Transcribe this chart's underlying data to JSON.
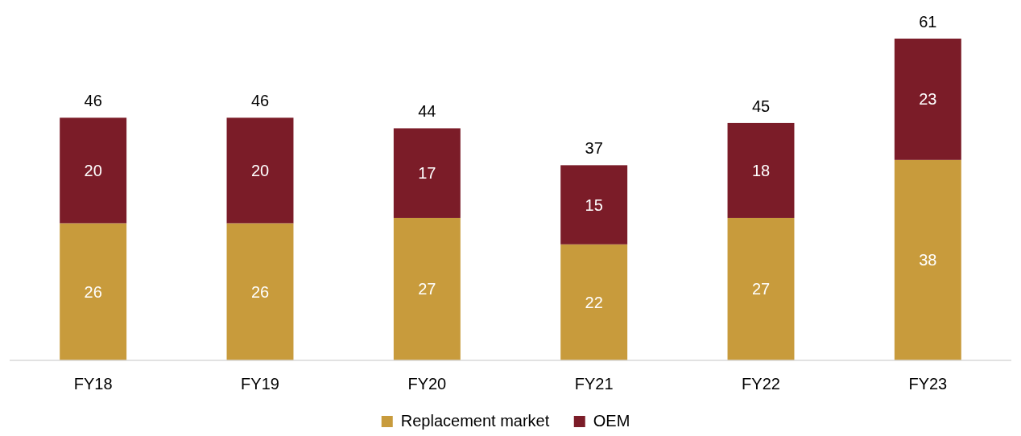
{
  "chart_data": {
    "type": "bar",
    "stacked": true,
    "categories": [
      "FY18",
      "FY19",
      "FY20",
      "FY21",
      "FY22",
      "FY23"
    ],
    "series": [
      {
        "name": "Replacement market",
        "color": "#c89b3c",
        "values": [
          26,
          26,
          27,
          22,
          27,
          38
        ]
      },
      {
        "name": "OEM",
        "color": "#7b1c28",
        "values": [
          20,
          20,
          17,
          15,
          18,
          23
        ]
      }
    ],
    "data_labels": true,
    "totals": [
      "46",
      "46",
      "44",
      "37",
      "45",
      "61"
    ],
    "legend": "bottom"
  }
}
